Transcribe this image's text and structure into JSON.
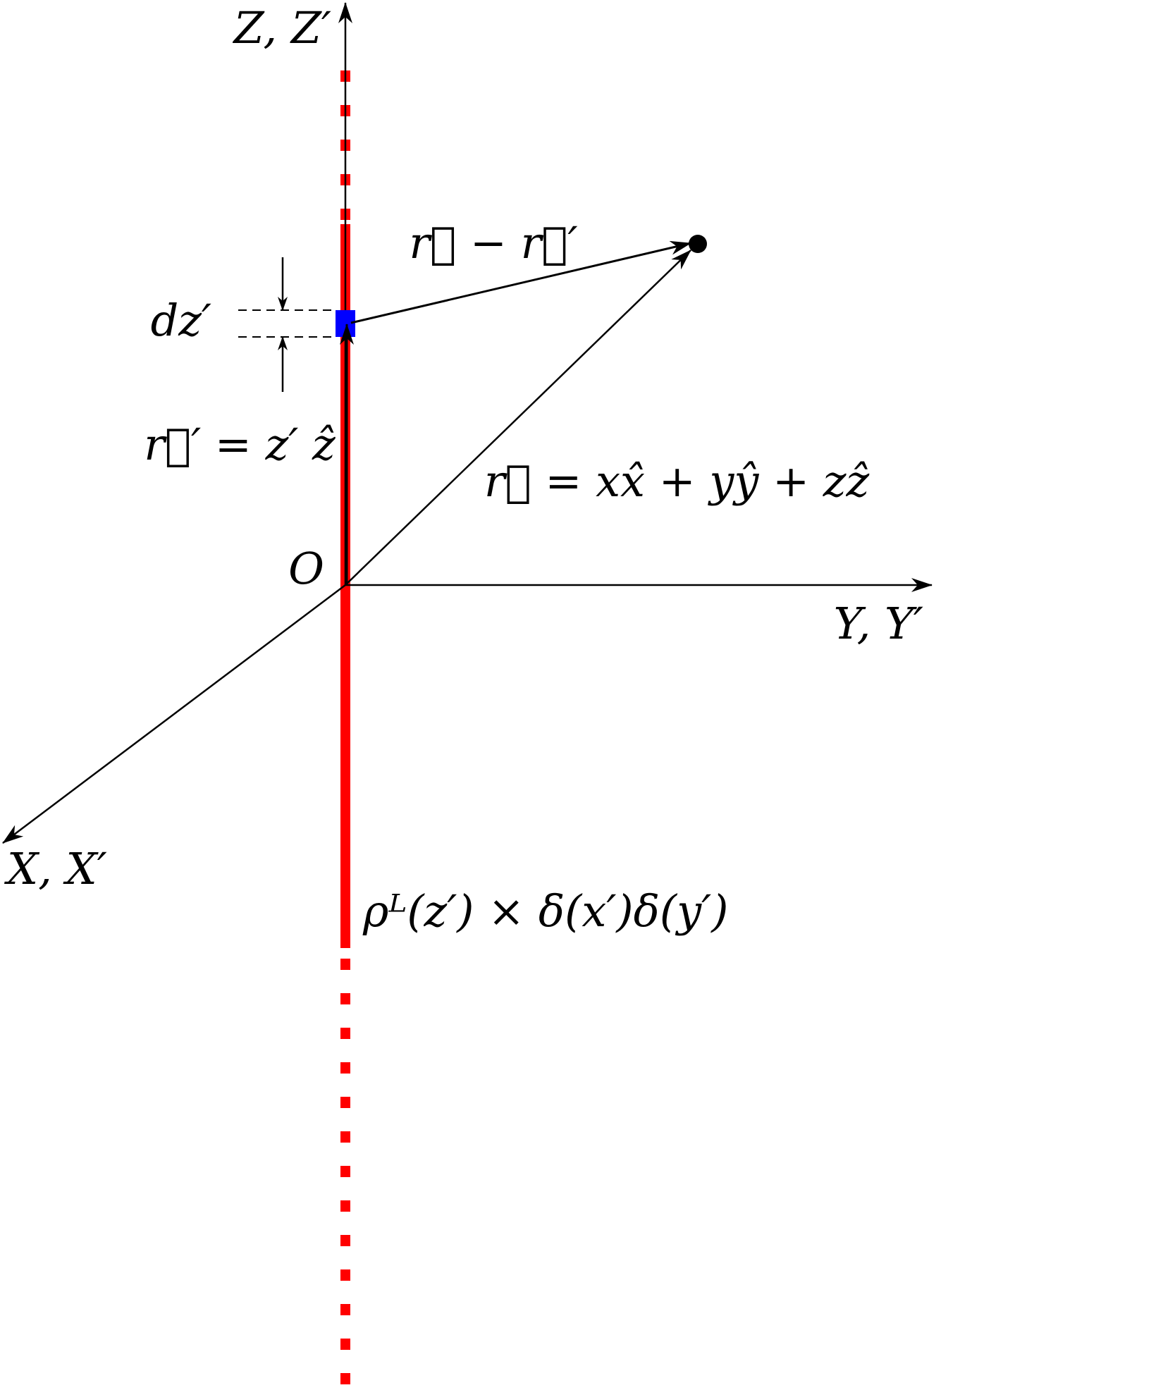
{
  "labels": {
    "z_axis": "Z, Z′",
    "y_axis": "Y, Y′",
    "x_axis": "X, X′",
    "origin": "O",
    "difference_vector": "r⃗ − r⃗′",
    "element_length": "dz′",
    "source_vector": "r⃗′ = z′ ẑ",
    "field_vector": "r⃗ = xx̂ + yŷ + zẑ",
    "line_density": "ρᴸ(z′) × δ(x′)δ(y′)"
  }
}
